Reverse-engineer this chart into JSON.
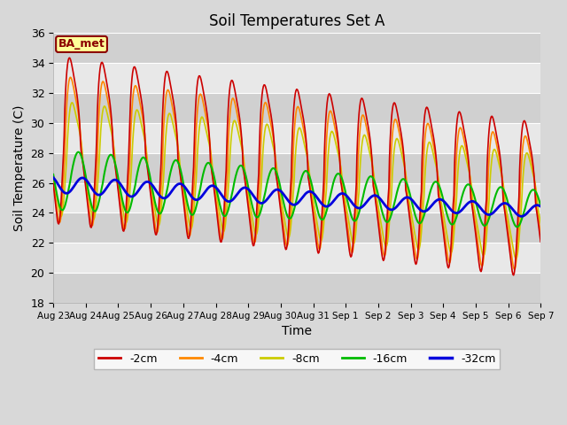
{
  "title": "Soil Temperatures Set A",
  "xlabel": "Time",
  "ylabel": "Soil Temperature (C)",
  "ylim": [
    18,
    36
  ],
  "yticks": [
    18,
    20,
    22,
    24,
    26,
    28,
    30,
    32,
    34,
    36
  ],
  "annotation": "BA_met",
  "legend": [
    "-2cm",
    "-4cm",
    "-8cm",
    "-16cm",
    "-32cm"
  ],
  "line_colors": [
    "#cc0000",
    "#ff8800",
    "#cccc00",
    "#00bb00",
    "#0000dd"
  ],
  "line_widths": [
    1.2,
    1.2,
    1.2,
    1.5,
    2.0
  ],
  "xticklabels": [
    "Aug 23",
    "Aug 24",
    "Aug 25",
    "Aug 26",
    "Aug 27",
    "Aug 28",
    "Aug 29",
    "Aug 30",
    "Aug 31",
    "Sep 1",
    "Sep 2",
    "Sep 3",
    "Sep 4",
    "Sep 5",
    "Sep 6",
    "Sep 7"
  ],
  "figsize": [
    6.4,
    4.8
  ],
  "dpi": 100
}
